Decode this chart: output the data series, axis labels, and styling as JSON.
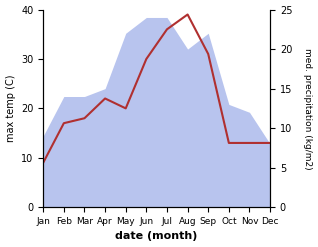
{
  "months": [
    "Jan",
    "Feb",
    "Mar",
    "Apr",
    "May",
    "Jun",
    "Jul",
    "Aug",
    "Sep",
    "Oct",
    "Nov",
    "Dec"
  ],
  "temperature": [
    9,
    17,
    18,
    22,
    20,
    30,
    36,
    39,
    31,
    13,
    13,
    13
  ],
  "precipitation": [
    9,
    14,
    14,
    15,
    22,
    24,
    24,
    20,
    22,
    13,
    12,
    8
  ],
  "temp_color": "#b03030",
  "precip_color_fill": "#b8c4ee",
  "temp_ylim": [
    0,
    40
  ],
  "precip_ylim": [
    0,
    25
  ],
  "xlabel": "date (month)",
  "ylabel_left": "max temp (C)",
  "ylabel_right": "med. precipitation (kg/m2)",
  "bg_color": "#ffffff"
}
